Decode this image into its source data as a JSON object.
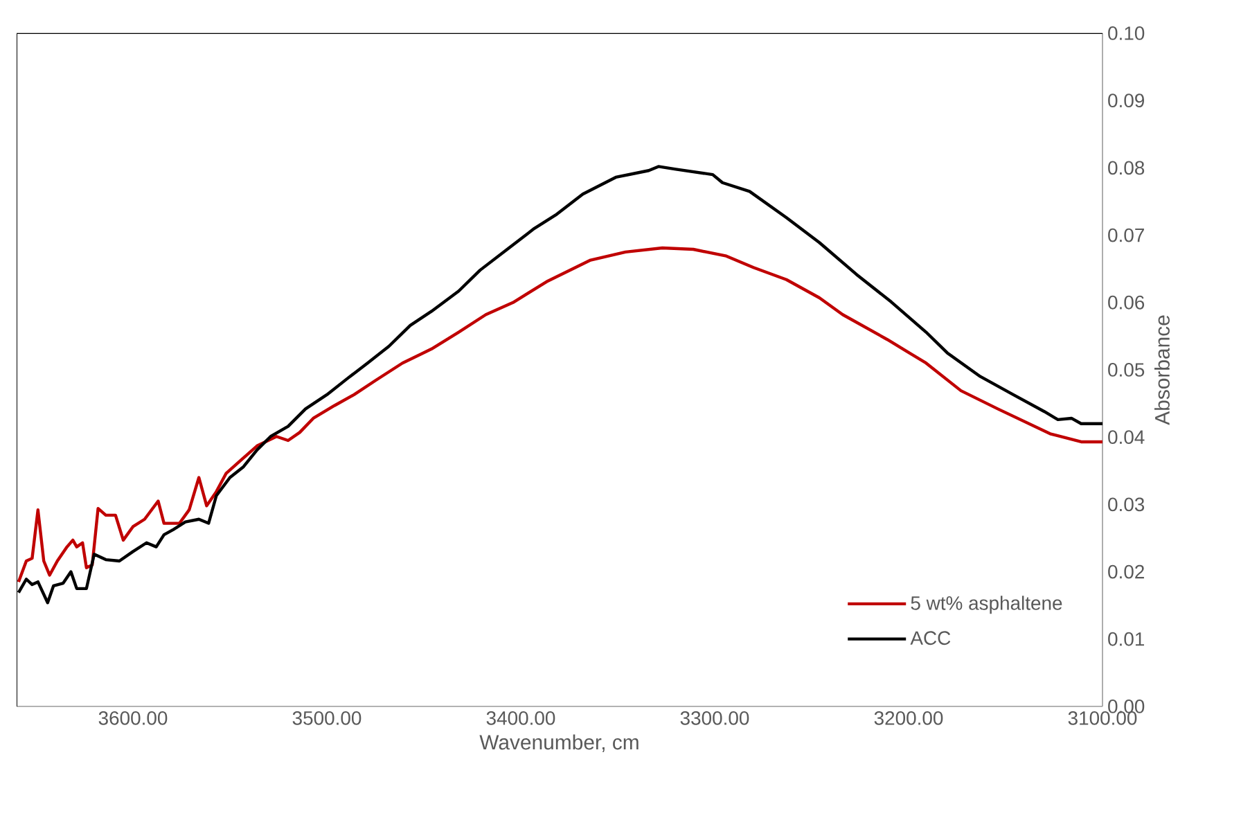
{
  "chart_data": {
    "type": "line",
    "xlabel": "Wavenumber, cm",
    "ylabel": "Absorbance",
    "xlim": [
      3660,
      3100
    ],
    "ylim": [
      0,
      0.1
    ],
    "xticks": [
      {
        "value": 3600,
        "label": "3600.00"
      },
      {
        "value": 3500,
        "label": "3500.00"
      },
      {
        "value": 3400,
        "label": "3400.00"
      },
      {
        "value": 3300,
        "label": "3300.00"
      },
      {
        "value": 3200,
        "label": "3200.00"
      },
      {
        "value": 3100,
        "label": "3100.00"
      }
    ],
    "yticks": [
      {
        "value": 0,
        "label": "0.00"
      },
      {
        "value": 0.01,
        "label": "0.01"
      },
      {
        "value": 0.02,
        "label": "0.02"
      },
      {
        "value": 0.03,
        "label": "0.03"
      },
      {
        "value": 0.04,
        "label": "0.04"
      },
      {
        "value": 0.05,
        "label": "0.05"
      },
      {
        "value": 0.06,
        "label": "0.06"
      },
      {
        "value": 0.07,
        "label": "0.07"
      },
      {
        "value": 0.08,
        "label": "0.08"
      },
      {
        "value": 0.09,
        "label": "0.09"
      },
      {
        "value": 0.1,
        "label": "0.10"
      }
    ],
    "grid": false,
    "legend": "bottom right",
    "marker": "none",
    "line_style": "solid",
    "series": [
      {
        "name": "5 wt% asphaltene",
        "color": "#c00000",
        "x": [
          3659,
          3655,
          3652,
          3649,
          3646,
          3643,
          3639,
          3634,
          3631,
          3629,
          3626,
          3624,
          3621,
          3618,
          3614,
          3609,
          3605,
          3600,
          3594,
          3587,
          3584,
          3576,
          3571,
          3566,
          3562,
          3557,
          3552,
          3545,
          3536,
          3526,
          3520,
          3514,
          3507,
          3496,
          3486,
          3475,
          3461,
          3446,
          3432,
          3418,
          3404,
          3386,
          3364,
          3346,
          3327,
          3311,
          3294,
          3280,
          3263,
          3246,
          3234,
          3211,
          3191,
          3173,
          3154,
          3127,
          3111,
          3100
        ],
        "values": [
          0.0185,
          0.0216,
          0.022,
          0.0292,
          0.0216,
          0.0195,
          0.0216,
          0.0237,
          0.0247,
          0.0237,
          0.0243,
          0.0206,
          0.021,
          0.0294,
          0.0284,
          0.0284,
          0.0247,
          0.0267,
          0.0278,
          0.0305,
          0.0272,
          0.0272,
          0.0292,
          0.034,
          0.0298,
          0.0319,
          0.0346,
          0.0364,
          0.0387,
          0.0401,
          0.0395,
          0.0407,
          0.0428,
          0.0447,
          0.0463,
          0.0484,
          0.051,
          0.0531,
          0.0556,
          0.0582,
          0.06,
          0.0632,
          0.0663,
          0.0675,
          0.0681,
          0.0679,
          0.0669,
          0.0652,
          0.0634,
          0.0607,
          0.0582,
          0.0545,
          0.051,
          0.0469,
          0.0442,
          0.0405,
          0.0393,
          0.0393
        ]
      },
      {
        "name": "ACC",
        "color": "#000000",
        "x": [
          3659,
          3655,
          3652,
          3649,
          3644,
          3641,
          3636,
          3632,
          3629,
          3624,
          3620,
          3614,
          3607,
          3600,
          3593,
          3588,
          3584,
          3579,
          3573,
          3566,
          3561,
          3557,
          3550,
          3543,
          3536,
          3529,
          3520,
          3511,
          3500,
          3489,
          3479,
          3468,
          3457,
          3446,
          3432,
          3421,
          3407,
          3393,
          3382,
          3368,
          3351,
          3334,
          3329,
          3320,
          3301,
          3296,
          3282,
          3263,
          3246,
          3227,
          3209,
          3191,
          3180,
          3163,
          3146,
          3130,
          3123,
          3116,
          3111,
          3100
        ],
        "values": [
          0.0169,
          0.0189,
          0.0181,
          0.0185,
          0.0154,
          0.0179,
          0.0183,
          0.02,
          0.0175,
          0.0175,
          0.0226,
          0.0218,
          0.0216,
          0.023,
          0.0243,
          0.0237,
          0.0255,
          0.0263,
          0.0274,
          0.0278,
          0.0272,
          0.0313,
          0.034,
          0.0356,
          0.0381,
          0.0401,
          0.0416,
          0.0442,
          0.0463,
          0.0488,
          0.051,
          0.0535,
          0.0566,
          0.0587,
          0.0617,
          0.0648,
          0.0679,
          0.071,
          0.073,
          0.0761,
          0.0786,
          0.0796,
          0.0802,
          0.0798,
          0.079,
          0.0778,
          0.0765,
          0.0726,
          0.0689,
          0.0642,
          0.0601,
          0.0556,
          0.0525,
          0.049,
          0.0463,
          0.0438,
          0.0426,
          0.0428,
          0.042,
          0.042
        ]
      }
    ]
  }
}
